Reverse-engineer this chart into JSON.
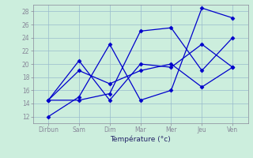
{
  "xlabel": "Température (°c)",
  "background_color": "#cceedd",
  "grid_color": "#99bbcc",
  "line_color": "#0000cc",
  "x_labels": [
    "Dirbun",
    "Sam",
    "Dim",
    "Mar",
    "Mer",
    "Jeu",
    "Ven"
  ],
  "x_positions": [
    0,
    1,
    2,
    3,
    4,
    5,
    6
  ],
  "ylim": [
    11,
    29
  ],
  "yticks": [
    12,
    14,
    16,
    18,
    20,
    22,
    24,
    26,
    28
  ],
  "series": [
    [
      14.5,
      20.5,
      14.5,
      20.0,
      19.5,
      23.0,
      19.5
    ],
    [
      12.0,
      15.0,
      23.0,
      14.5,
      16.0,
      28.5,
      27.0
    ],
    [
      14.5,
      14.5,
      15.5,
      25.0,
      25.5,
      19.0,
      24.0
    ],
    [
      14.5,
      19.0,
      17.0,
      19.0,
      20.0,
      16.5,
      19.5
    ]
  ]
}
